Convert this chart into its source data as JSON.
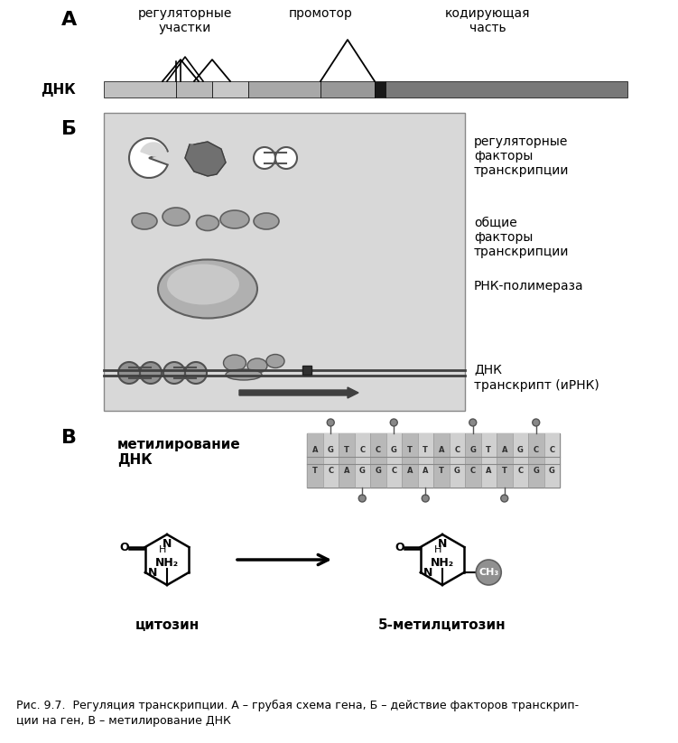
{
  "title_A": "А",
  "title_B": "Б",
  "title_C": "В",
  "label_regulatory_sites": "регуляторные\nучастки",
  "label_promoter": "промотор",
  "label_coding": "кодирующая\nчасть",
  "label_dna": "ДНК",
  "label_reg_factors": "регуляторные\nфакторы\nтранскрипции",
  "label_general_factors": "общие\nфакторы\nтранскрипции",
  "label_rna_pol": "РНК-полимераза",
  "label_dna2": "ДНК",
  "label_transcript": "транскрипт (иРНК)",
  "label_methylation": "метилирование\nДНК",
  "label_cytosine": "цитозин",
  "label_5methyl": "5-метилцитозин",
  "caption": "Рис. 9.7.  Регуляция транскрипции. А – грубая схема гена, Б – действие факторов транскрип-\nции на ген, В – метилирование ДНК",
  "bg_color": "#e8e8e8",
  "dna_colors": [
    "#c8c8c8",
    "#b0b0b0",
    "#a0a0a0",
    "#888888",
    "#202020",
    "#707070"
  ],
  "arrow_color": "#404040"
}
